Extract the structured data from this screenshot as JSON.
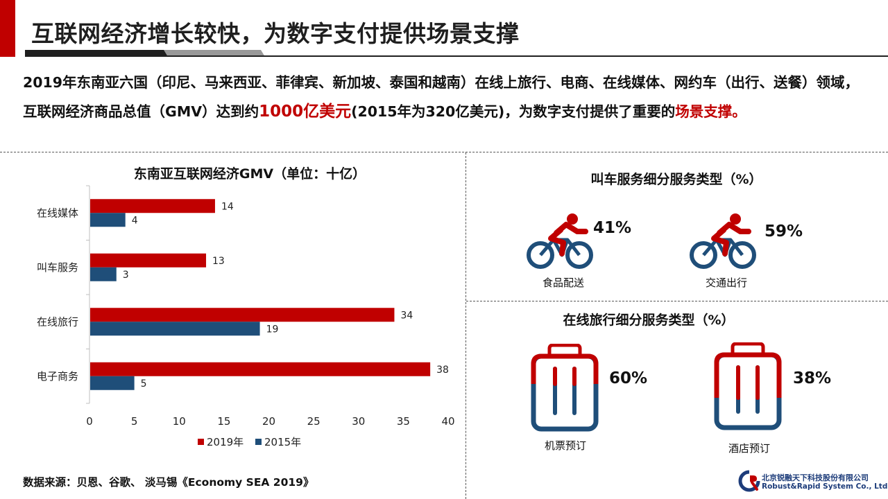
{
  "title": "互联网经济增长较快，为数字支付提供场景支撑",
  "intro": {
    "part1": "2019年东南亚六国（印尼、马来西亚、菲律宾、新加坡、泰国和越南）在线上旅行、电商、在线媒体、网约车（出行、送餐）领域，互联网经济商品总值（GMV）达到约",
    "highlight1": "1000亿美元",
    "part2": "(2015年为320亿美元)，为数字支付提供了重要的",
    "highlight2": "场景支撑",
    "part3": "。"
  },
  "chart_data": {
    "type": "bar",
    "orientation": "horizontal",
    "title": "东南亚互联网经济GMV（单位：十亿）",
    "categories": [
      "在线媒体",
      "叫车服务",
      "在线旅行",
      "电子商务"
    ],
    "series": [
      {
        "name": "2019年",
        "values": [
          14,
          13,
          34,
          38
        ],
        "color": "#c00000"
      },
      {
        "name": "2015年",
        "values": [
          4,
          3,
          19,
          5
        ],
        "color": "#1f4e79"
      }
    ],
    "xlim": [
      0,
      40
    ],
    "xticks": [
      "0",
      "5",
      "10",
      "15",
      "20",
      "25",
      "30",
      "35",
      "40"
    ],
    "legend": "bottom"
  },
  "ride_panel": {
    "title": "叫车服务细分服务类型（%）",
    "items": [
      {
        "label": "食品配送",
        "value": "41%"
      },
      {
        "label": "交通出行",
        "value": "59%"
      }
    ]
  },
  "travel_panel": {
    "title": "在线旅行细分服务类型（%）",
    "items": [
      {
        "label": "机票预订",
        "value": "60%"
      },
      {
        "label": "酒店预订",
        "value": "38%"
      }
    ]
  },
  "source": "数据来源：贝恩、谷歌、 淡马锡《Economy SEA 2019》",
  "company": {
    "name_cn": "北京锐融天下科技股份有限公司",
    "name_en": "Robust&Rapid System Co., Ltd"
  },
  "colors": {
    "red": "#c00000",
    "blue": "#1f4e79"
  }
}
